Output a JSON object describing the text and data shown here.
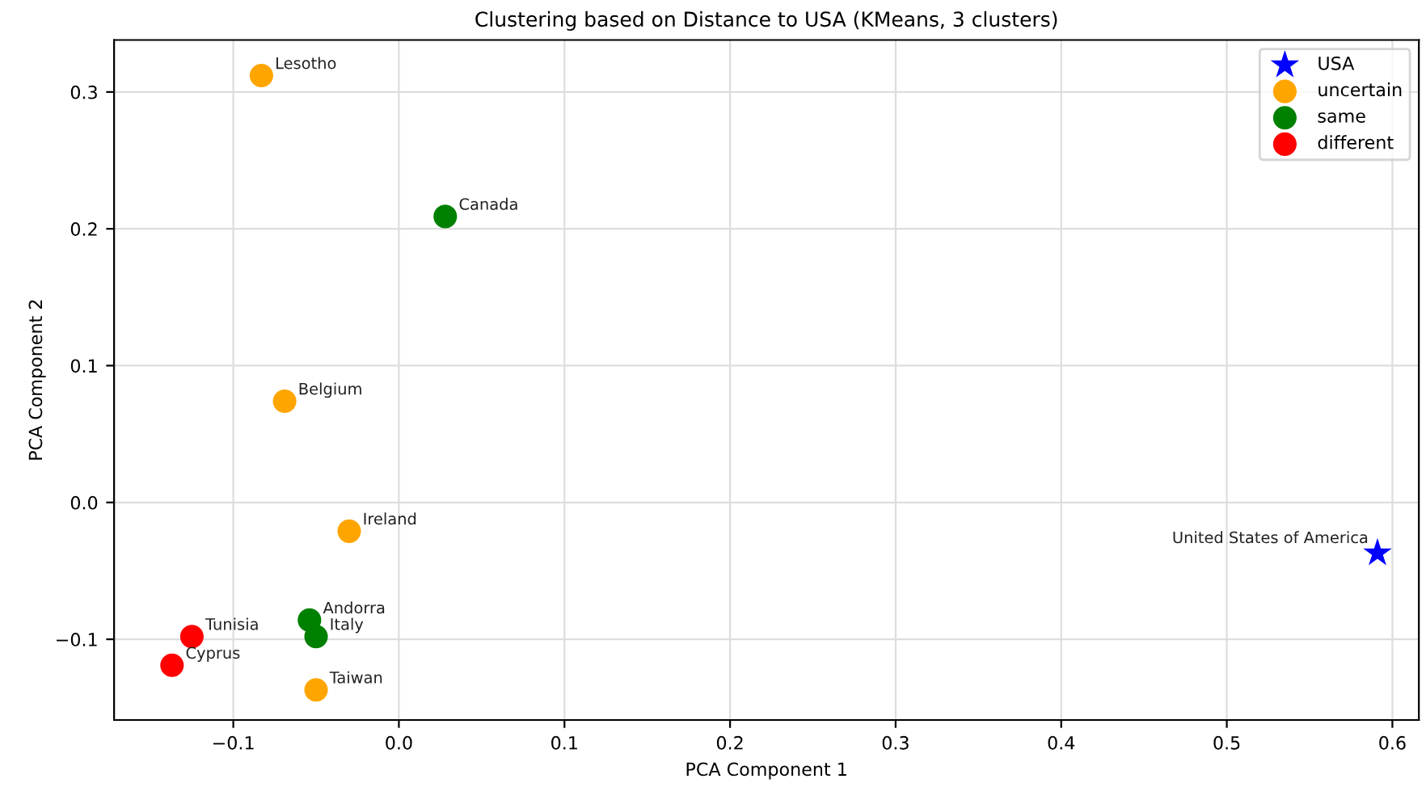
{
  "chart_data": {
    "type": "scatter",
    "title": "Clustering based on Distance to USA (KMeans, 3 clusters)",
    "xlabel": "PCA Component 1",
    "ylabel": "PCA Component 2",
    "series": [
      {
        "name": "USA",
        "color": "#0000ff",
        "marker": "star",
        "x": [
          0.591
        ],
        "values": [
          -0.037
        ]
      },
      {
        "name": "uncertain",
        "color": "#ffa500",
        "marker": "circle",
        "x": [
          -0.083,
          -0.069,
          -0.03,
          -0.05
        ],
        "values": [
          0.312,
          0.074,
          -0.021,
          -0.137
        ]
      },
      {
        "name": "same",
        "color": "#008000",
        "marker": "circle",
        "x": [
          0.028,
          -0.054,
          -0.05
        ],
        "values": [
          0.209,
          -0.086,
          -0.098
        ]
      },
      {
        "name": "different",
        "color": "#ff0000",
        "marker": "circle",
        "x": [
          -0.125,
          -0.137
        ],
        "values": [
          -0.098,
          -0.119
        ]
      }
    ],
    "annotations": [
      {
        "text": "United States of America",
        "x": 0.591,
        "y": -0.037
      },
      {
        "text": "Lesotho",
        "x": -0.083,
        "y": 0.312
      },
      {
        "text": "Belgium",
        "x": -0.069,
        "y": 0.074
      },
      {
        "text": "Ireland",
        "x": -0.03,
        "y": -0.021
      },
      {
        "text": "Taiwan",
        "x": -0.05,
        "y": -0.137
      },
      {
        "text": "Canada",
        "x": 0.028,
        "y": 0.209
      },
      {
        "text": "Andorra",
        "x": -0.054,
        "y": -0.086
      },
      {
        "text": "Italy",
        "x": -0.05,
        "y": -0.098
      },
      {
        "text": "Tunisia",
        "x": -0.125,
        "y": -0.098
      },
      {
        "text": "Cyprus",
        "x": -0.137,
        "y": -0.119
      }
    ],
    "xlim": [
      -0.172,
      0.616
    ],
    "ylim": [
      -0.159,
      0.338
    ],
    "xticks": [
      {
        "value": -0.1,
        "label": "−0.1"
      },
      {
        "value": 0,
        "label": "0.0"
      },
      0.1,
      0.2,
      0.3,
      0.4,
      0.5,
      0.6
    ],
    "yticks": [
      {
        "value": -0.1,
        "label": "−0.1"
      },
      {
        "value": 0,
        "label": "0.0"
      },
      0.1,
      0.2,
      0.3
    ],
    "grid": true,
    "legend": "top right"
  }
}
